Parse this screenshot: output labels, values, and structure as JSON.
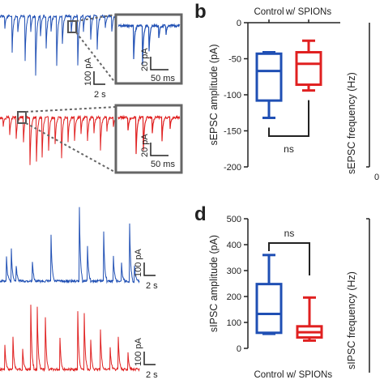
{
  "panels": {
    "b": "b",
    "d": "d"
  },
  "colors": {
    "control": "#1f4fb4",
    "spions": "#e02020",
    "inset_border": "#555555"
  },
  "traces": {
    "top": {
      "inset_scale_y": "20 pA",
      "inset_scale_x": "50 ms",
      "scale_y": "100 pA",
      "scale_x": "2 s"
    },
    "bottom": {
      "scale_y": "100 pA",
      "scale_x": "2 s"
    }
  },
  "chart_data": [
    {
      "type": "box",
      "id": "b",
      "ylabel": "sEPSC amplitude (pA)",
      "ylim": [
        -200,
        0
      ],
      "yticks": [
        0,
        -50,
        -100,
        -150,
        -200
      ],
      "x_labels_top": [
        "Control",
        "w/ SPIONs"
      ],
      "significance": "ns",
      "series": [
        {
          "name": "Control",
          "whisker_low": -132,
          "q1": -108,
          "median": -67,
          "q3": -43,
          "whisker_high": -41
        },
        {
          "name": "w/ SPIONs",
          "whisker_low": -94,
          "q1": -86,
          "median": -57,
          "q3": -41,
          "whisker_high": -25
        }
      ]
    },
    {
      "type": "box",
      "id": "d",
      "ylabel": "sIPSC amplitude (pA)",
      "ylim": [
        0,
        500
      ],
      "yticks": [
        0,
        100,
        200,
        300,
        400,
        500
      ],
      "x_labels_bottom": [
        "Control",
        "w/ SPIONs"
      ],
      "significance": "ns",
      "series": [
        {
          "name": "Control",
          "whisker_low": 56,
          "q1": 60,
          "median": 133,
          "q3": 248,
          "whisker_high": 360
        },
        {
          "name": "w/ SPIONs",
          "whisker_low": 30,
          "q1": 42,
          "median": 62,
          "q3": 85,
          "whisker_high": 196
        }
      ]
    }
  ],
  "right_panels": {
    "top_ylabel": "sEPSC frequency (Hz)",
    "bottom_ylabel": "sIPSC frequency (Hz)",
    "top_partial_tick": "0",
    "bottom_partial_tick": ""
  }
}
